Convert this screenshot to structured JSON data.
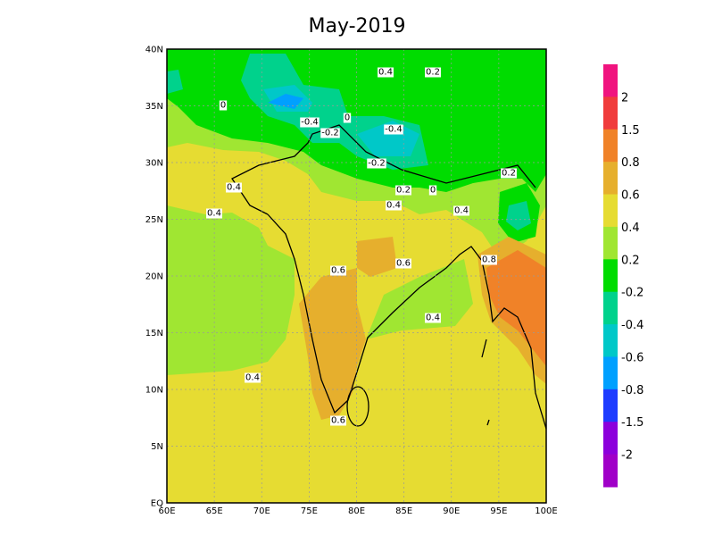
{
  "title": "May-2019",
  "y_axis": {
    "labels": [
      "40N",
      "35N",
      "30N",
      "25N",
      "20N",
      "15N",
      "10N",
      "5N",
      "EQ"
    ]
  },
  "x_axis": {
    "labels": [
      "60E",
      "65E",
      "70E",
      "75E",
      "80E",
      "85E",
      "90E",
      "95E",
      "100E"
    ]
  },
  "colorbar": {
    "labels": [
      "2",
      "1.5",
      "0.8",
      "0.6",
      "0.4",
      "0.2",
      "-0.2",
      "-0.4",
      "-0.6",
      "-0.8",
      "-1.5",
      "-2"
    ]
  },
  "contour_labels": [
    "0.4",
    "0.2",
    "0",
    "-0.4",
    "0",
    "-0.2",
    "-0.4",
    "-0.2",
    "0.2",
    "0.4",
    "0.2",
    "0",
    "0.4",
    "0.4",
    "0.4",
    "0.8",
    "0.6",
    "0.6",
    "0.4",
    "0.4",
    "0.6"
  ]
}
